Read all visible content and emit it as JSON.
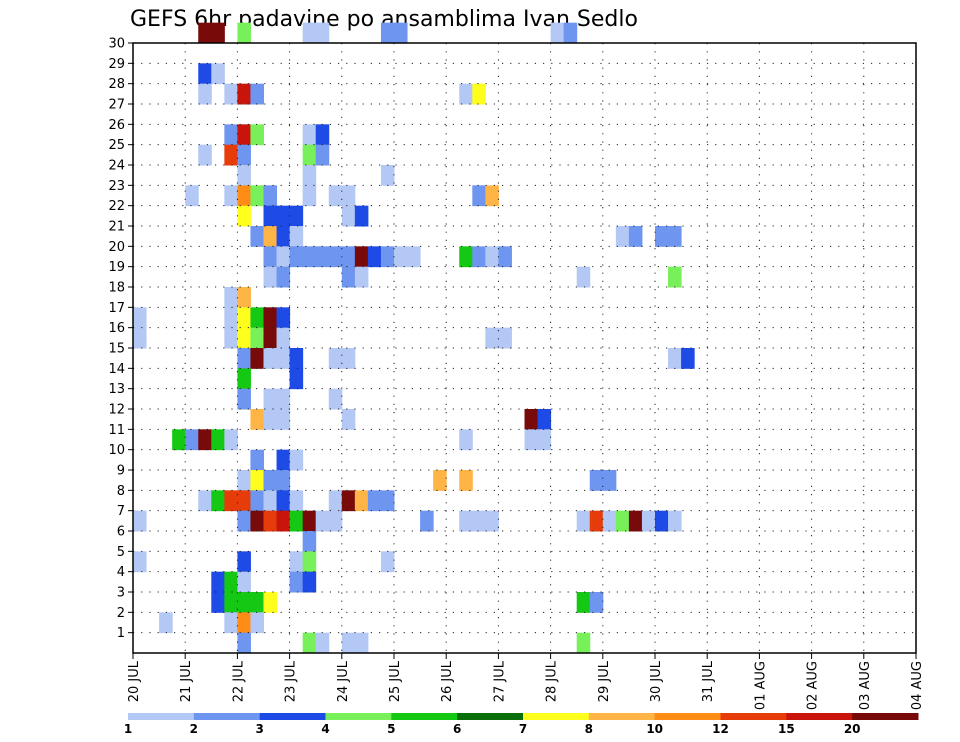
{
  "chart_data": {
    "type": "heatmap",
    "title": "GEFS 6hr padavine po ansamblima Ivan Sedlo",
    "xlabel": "",
    "ylabel": "",
    "x_tick_labels": [
      "20 JUL",
      "21 JUL",
      "22 JUL",
      "23 JUL",
      "24 JUL",
      "25 JUL",
      "26 JUL",
      "27 JUL",
      "28 JUL",
      "29 JUL",
      "30 JUL",
      "31 JUL",
      "01 AUG",
      "02 AUG",
      "03 AUG",
      "04 AUG"
    ],
    "y_tick_labels": [
      "1",
      "2",
      "3",
      "4",
      "5",
      "6",
      "7",
      "8",
      "9",
      "10",
      "11",
      "12",
      "13",
      "14",
      "15",
      "16",
      "17",
      "18",
      "19",
      "20",
      "21",
      "22",
      "23",
      "24",
      "25",
      "26",
      "27",
      "28",
      "29",
      "30"
    ],
    "x_range_days": [
      0,
      15
    ],
    "y_range": [
      0,
      30
    ],
    "time_step_hours": 6,
    "grid": "dotted",
    "colorbar": {
      "levels": [
        "1",
        "2",
        "3",
        "4",
        "5",
        "6",
        "7",
        "8",
        "10",
        "12",
        "15",
        "20"
      ],
      "colors": [
        "#b4c8f5",
        "#6e96f0",
        "#1e4be6",
        "#78f05a",
        "#14c814",
        "#0a6e0a",
        "#ffff1e",
        "#ffb446",
        "#ff8c14",
        "#e63c0a",
        "#c8140a",
        "#780a0a"
      ]
    },
    "cells": [
      [
        5,
        30,
        11
      ],
      [
        6,
        30,
        11
      ],
      [
        8,
        30,
        3
      ],
      [
        13,
        30,
        0
      ],
      [
        14,
        30,
        0
      ],
      [
        19,
        30,
        1
      ],
      [
        20,
        30,
        1
      ],
      [
        32,
        30,
        0
      ],
      [
        33,
        30,
        1
      ],
      [
        5,
        28,
        2
      ],
      [
        6,
        28,
        0
      ],
      [
        5,
        27,
        0
      ],
      [
        7,
        27,
        0
      ],
      [
        8,
        27,
        10
      ],
      [
        9,
        27,
        1
      ],
      [
        25,
        27,
        0
      ],
      [
        26,
        27,
        6
      ],
      [
        7,
        25,
        1
      ],
      [
        8,
        25,
        10
      ],
      [
        9,
        25,
        3
      ],
      [
        13,
        25,
        0
      ],
      [
        14,
        25,
        2
      ],
      [
        5,
        24,
        0
      ],
      [
        7,
        24,
        9
      ],
      [
        8,
        24,
        1
      ],
      [
        13,
        24,
        3
      ],
      [
        14,
        24,
        1
      ],
      [
        8,
        23,
        0
      ],
      [
        13,
        23,
        0
      ],
      [
        19,
        23,
        0
      ],
      [
        4,
        22,
        0
      ],
      [
        7,
        22,
        0
      ],
      [
        8,
        22,
        8
      ],
      [
        9,
        22,
        3
      ],
      [
        10,
        22,
        1
      ],
      [
        13,
        22,
        0
      ],
      [
        15,
        22,
        0
      ],
      [
        16,
        22,
        0
      ],
      [
        26,
        22,
        1
      ],
      [
        27,
        22,
        7
      ],
      [
        8,
        21,
        6
      ],
      [
        10,
        21,
        2
      ],
      [
        11,
        21,
        2
      ],
      [
        12,
        21,
        2
      ],
      [
        16,
        21,
        0
      ],
      [
        17,
        21,
        2
      ],
      [
        9,
        20,
        1
      ],
      [
        10,
        20,
        7
      ],
      [
        11,
        20,
        2
      ],
      [
        12,
        20,
        0
      ],
      [
        37,
        20,
        0
      ],
      [
        38,
        20,
        1
      ],
      [
        40,
        20,
        1
      ],
      [
        41,
        20,
        1
      ],
      [
        10,
        19,
        1
      ],
      [
        11,
        19,
        0
      ],
      [
        12,
        19,
        1
      ],
      [
        13,
        19,
        1
      ],
      [
        14,
        19,
        1
      ],
      [
        15,
        19,
        1
      ],
      [
        16,
        19,
        1
      ],
      [
        17,
        19,
        11
      ],
      [
        18,
        19,
        2
      ],
      [
        19,
        19,
        1
      ],
      [
        20,
        19,
        0
      ],
      [
        21,
        19,
        0
      ],
      [
        25,
        19,
        4
      ],
      [
        26,
        19,
        1
      ],
      [
        27,
        19,
        0
      ],
      [
        28,
        19,
        1
      ],
      [
        10,
        18,
        0
      ],
      [
        11,
        18,
        1
      ],
      [
        16,
        18,
        1
      ],
      [
        17,
        18,
        0
      ],
      [
        34,
        18,
        0
      ],
      [
        41,
        18,
        3
      ],
      [
        7,
        17,
        0
      ],
      [
        8,
        17,
        7
      ],
      [
        0,
        16,
        0
      ],
      [
        7,
        16,
        0
      ],
      [
        8,
        16,
        6
      ],
      [
        9,
        16,
        4
      ],
      [
        10,
        16,
        11
      ],
      [
        11,
        16,
        2
      ],
      [
        0,
        15,
        0
      ],
      [
        7,
        15,
        0
      ],
      [
        8,
        15,
        6
      ],
      [
        9,
        15,
        3
      ],
      [
        10,
        15,
        11
      ],
      [
        11,
        15,
        0
      ],
      [
        27,
        15,
        0
      ],
      [
        28,
        15,
        0
      ],
      [
        8,
        14,
        1
      ],
      [
        9,
        14,
        11
      ],
      [
        10,
        14,
        0
      ],
      [
        11,
        14,
        0
      ],
      [
        12,
        14,
        2
      ],
      [
        15,
        14,
        0
      ],
      [
        16,
        14,
        0
      ],
      [
        41,
        14,
        0
      ],
      [
        42,
        14,
        2
      ],
      [
        8,
        13,
        4
      ],
      [
        12,
        13,
        2
      ],
      [
        8,
        12,
        1
      ],
      [
        10,
        12,
        0
      ],
      [
        11,
        12,
        0
      ],
      [
        15,
        12,
        0
      ],
      [
        9,
        11,
        7
      ],
      [
        10,
        11,
        0
      ],
      [
        11,
        11,
        0
      ],
      [
        16,
        11,
        0
      ],
      [
        30,
        11,
        11
      ],
      [
        31,
        11,
        2
      ],
      [
        30,
        10,
        0
      ],
      [
        31,
        10,
        0
      ],
      [
        3,
        10,
        4
      ],
      [
        4,
        10,
        1
      ],
      [
        5,
        10,
        11
      ],
      [
        6,
        10,
        4
      ],
      [
        7,
        10,
        0
      ],
      [
        25,
        10,
        0
      ],
      [
        9,
        9,
        1
      ],
      [
        11,
        9,
        2
      ],
      [
        12,
        9,
        0
      ],
      [
        8,
        8,
        0
      ],
      [
        9,
        8,
        6
      ],
      [
        10,
        8,
        1
      ],
      [
        11,
        8,
        1
      ],
      [
        23,
        8,
        7
      ],
      [
        25,
        8,
        7
      ],
      [
        35,
        8,
        1
      ],
      [
        36,
        8,
        1
      ],
      [
        5,
        7,
        0
      ],
      [
        6,
        7,
        4
      ],
      [
        7,
        7,
        9
      ],
      [
        8,
        7,
        9
      ],
      [
        9,
        7,
        1
      ],
      [
        10,
        7,
        0
      ],
      [
        11,
        7,
        2
      ],
      [
        12,
        7,
        0
      ],
      [
        15,
        7,
        0
      ],
      [
        16,
        7,
        11
      ],
      [
        17,
        7,
        7
      ],
      [
        18,
        7,
        1
      ],
      [
        19,
        7,
        1
      ],
      [
        0,
        6,
        0
      ],
      [
        8,
        6,
        1
      ],
      [
        9,
        6,
        11
      ],
      [
        10,
        6,
        9
      ],
      [
        11,
        6,
        10
      ],
      [
        12,
        6,
        4
      ],
      [
        13,
        6,
        11
      ],
      [
        14,
        6,
        0
      ],
      [
        15,
        6,
        0
      ],
      [
        22,
        6,
        1
      ],
      [
        25,
        6,
        0
      ],
      [
        26,
        6,
        0
      ],
      [
        27,
        6,
        0
      ],
      [
        34,
        6,
        0
      ],
      [
        35,
        6,
        9
      ],
      [
        36,
        6,
        0
      ],
      [
        37,
        6,
        3
      ],
      [
        38,
        6,
        11
      ],
      [
        39,
        6,
        0
      ],
      [
        40,
        6,
        2
      ],
      [
        41,
        6,
        0
      ],
      [
        13,
        5,
        1
      ],
      [
        0,
        4,
        0
      ],
      [
        8,
        4,
        2
      ],
      [
        12,
        4,
        0
      ],
      [
        13,
        4,
        3
      ],
      [
        19,
        4,
        0
      ],
      [
        6,
        3,
        2
      ],
      [
        7,
        3,
        4
      ],
      [
        8,
        3,
        0
      ],
      [
        12,
        3,
        1
      ],
      [
        13,
        3,
        2
      ],
      [
        6,
        2,
        2
      ],
      [
        7,
        2,
        4
      ],
      [
        8,
        2,
        4
      ],
      [
        9,
        2,
        4
      ],
      [
        10,
        2,
        6
      ],
      [
        34,
        2,
        4
      ],
      [
        35,
        2,
        1
      ],
      [
        2,
        1,
        0
      ],
      [
        7,
        1,
        0
      ],
      [
        8,
        1,
        8
      ],
      [
        9,
        1,
        0
      ],
      [
        8,
        0,
        1
      ],
      [
        13,
        0,
        3
      ],
      [
        14,
        0,
        0
      ],
      [
        16,
        0,
        0
      ],
      [
        17,
        0,
        0
      ],
      [
        34,
        0,
        3
      ]
    ]
  }
}
